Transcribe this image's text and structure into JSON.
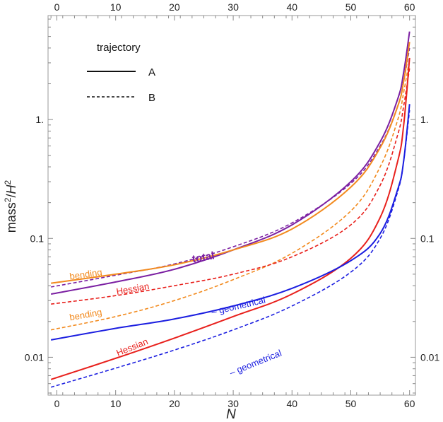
{
  "chart_data": {
    "type": "line",
    "x_scale": "linear",
    "y_scale": "log",
    "xlim": [
      -1.5,
      61
    ],
    "ylim": [
      0.0048,
      7.5
    ],
    "xlabel": "N",
    "ylabel": "mass²/H²",
    "x_ticks": [
      0,
      10,
      20,
      30,
      40,
      50,
      60
    ],
    "x_tick_labels": [
      "0",
      "10",
      "20",
      "30",
      "40",
      "50",
      "60"
    ],
    "y_ticks": [
      0.01,
      0.1,
      1
    ],
    "y_tick_labels": [
      "0.01",
      "0.1",
      "1."
    ],
    "grid": false,
    "legend": {
      "title": "trajectory",
      "placement": "top-left",
      "entries": [
        {
          "label": "A",
          "style": "solid"
        },
        {
          "label": "B",
          "style": "dashed"
        }
      ]
    },
    "colors": {
      "total": "#7b1fa2",
      "bending": "#f28a1e",
      "hessian": "#e8201c",
      "geometrical": "#1b1ee0"
    },
    "series": [
      {
        "trajectory": "A",
        "quantity": "total",
        "color": "#7b1fa2",
        "dash": "solid",
        "x": [
          -1,
          10,
          20,
          30,
          40,
          50,
          55,
          58,
          59,
          60
        ],
        "y": [
          0.034,
          0.043,
          0.055,
          0.08,
          0.13,
          0.3,
          0.65,
          1.5,
          2.5,
          5.5
        ]
      },
      {
        "trajectory": "B",
        "quantity": "total",
        "color": "#7b1fa2",
        "dash": "dashed",
        "x": [
          -1,
          10,
          20,
          30,
          40,
          50,
          55,
          58,
          59,
          60
        ],
        "y": [
          0.039,
          0.049,
          0.061,
          0.085,
          0.135,
          0.29,
          0.6,
          1.3,
          2.1,
          4.0
        ]
      },
      {
        "trajectory": "A",
        "quantity": "bending",
        "color": "#f28a1e",
        "dash": "solid",
        "x": [
          -1,
          10,
          20,
          30,
          40,
          50,
          55,
          58,
          59,
          60
        ],
        "y": [
          0.042,
          0.05,
          0.06,
          0.08,
          0.12,
          0.27,
          0.58,
          1.3,
          2.1,
          4.5
        ]
      },
      {
        "trajectory": "B",
        "quantity": "bending",
        "color": "#f28a1e",
        "dash": "dashed",
        "x": [
          -1,
          10,
          20,
          30,
          40,
          50,
          55,
          58,
          59,
          60
        ],
        "y": [
          0.017,
          0.022,
          0.03,
          0.045,
          0.075,
          0.17,
          0.4,
          1.0,
          1.7,
          3.2
        ]
      },
      {
        "trajectory": "A",
        "quantity": "Hessian",
        "color": "#e8201c",
        "dash": "solid",
        "x": [
          -1,
          10,
          20,
          30,
          40,
          50,
          55,
          58,
          59,
          60
        ],
        "y": [
          0.0065,
          0.0098,
          0.0145,
          0.022,
          0.034,
          0.068,
          0.15,
          0.45,
          0.9,
          3.3
        ]
      },
      {
        "trajectory": "B",
        "quantity": "Hessian",
        "color": "#e8201c",
        "dash": "dashed",
        "x": [
          -1,
          10,
          20,
          30,
          40,
          50,
          55,
          58,
          59,
          60
        ],
        "y": [
          0.028,
          0.033,
          0.04,
          0.05,
          0.07,
          0.13,
          0.28,
          0.75,
          1.3,
          2.7
        ]
      },
      {
        "trajectory": "A",
        "quantity": "- geometrical",
        "color": "#1b1ee0",
        "dash": "solid",
        "x": [
          -1,
          10,
          20,
          30,
          40,
          50,
          55,
          58,
          59,
          60
        ],
        "y": [
          0.014,
          0.0175,
          0.021,
          0.027,
          0.038,
          0.065,
          0.11,
          0.26,
          0.45,
          1.35
        ]
      },
      {
        "trajectory": "B",
        "quantity": "- geometrical",
        "color": "#1b1ee0",
        "dash": "dashed",
        "x": [
          -1,
          10,
          20,
          30,
          40,
          50,
          55,
          58,
          59,
          60
        ],
        "y": [
          0.0056,
          0.0081,
          0.0115,
          0.017,
          0.027,
          0.052,
          0.1,
          0.25,
          0.45,
          1.2
        ]
      }
    ],
    "annotations": [
      {
        "text": "bending",
        "color": "#f28a1e",
        "x": 5,
        "y": 0.047,
        "rotate": -8
      },
      {
        "text": "total",
        "color": "#7b1fa2",
        "x": 25,
        "y": 0.065,
        "rotate": -10,
        "bold": true
      },
      {
        "text": "Hessian",
        "color": "#e8201c",
        "x": 13,
        "y": 0.0355,
        "rotate": -10
      },
      {
        "text": "bending",
        "color": "#f28a1e",
        "x": 5,
        "y": 0.0215,
        "rotate": -10
      },
      {
        "text": "– geometrical",
        "color": "#1b1ee0",
        "x": 31,
        "y": 0.0255,
        "rotate": -13
      },
      {
        "text": "Hessian",
        "color": "#e8201c",
        "x": 13,
        "y": 0.0115,
        "rotate": -22
      },
      {
        "text": "– geometrical",
        "color": "#1b1ee0",
        "x": 34,
        "y": 0.0085,
        "rotate": -22
      }
    ]
  }
}
